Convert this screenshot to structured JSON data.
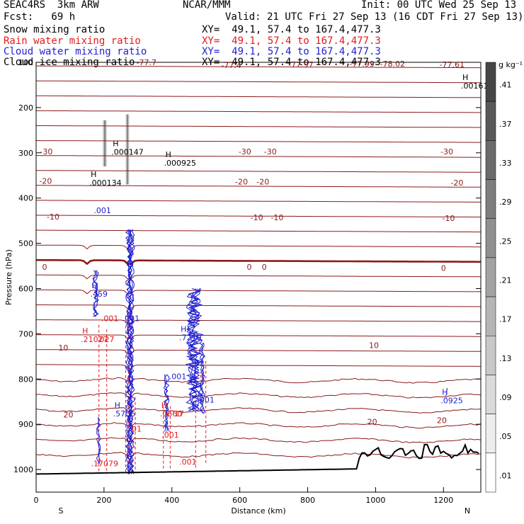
{
  "header": {
    "model": "SEAC4RS  3km ARW",
    "org": "NCAR/MMM",
    "init": "Init: 00 UTC Wed 25 Sep 13",
    "fcst": "Fcst:   69 h",
    "valid": "Valid: 21 UTC Fri 27 Sep 13 (16 CDT Fri 27 Sep 13)"
  },
  "fields": [
    {
      "label": "Snow mixing ratio",
      "xy": "XY=  49.1, 57.4 to 167.4,477.3",
      "color": "#000000"
    },
    {
      "label": "Rain water mixing ratio",
      "xy": "XY=  49.1, 57.4 to 167.4,477.3",
      "color": "#e41a1c"
    },
    {
      "label": "Cloud water mixing ratio",
      "xy": "XY=  49.1, 57.4 to 167.4,477.3",
      "color": "#1f1fd0"
    },
    {
      "label": "Cloud ice mixing ratio",
      "xy": "XY=  49.1, 57.4 to 167.4,477.3",
      "color": "#000000"
    }
  ],
  "chart_data": {
    "type": "line",
    "title": "",
    "xlabel": "Distance (km)",
    "ylabel": "Pressure (hPa)",
    "xlim": [
      0,
      1310
    ],
    "ylim": [
      1050,
      100
    ],
    "x_ticks": [
      "0",
      "200",
      "400",
      "600",
      "800",
      "1000",
      "1200"
    ],
    "x_tick_values": [
      0,
      200,
      400,
      600,
      800,
      1000,
      1200
    ],
    "y_ticks": [
      "100",
      "200",
      "300",
      "400",
      "500",
      "600",
      "700",
      "800",
      "900",
      "1000"
    ],
    "y_tick_values": [
      100,
      200,
      300,
      400,
      500,
      600,
      700,
      800,
      900,
      1000
    ],
    "endpoints": {
      "left": "S",
      "right": "N"
    },
    "temperature_label_color": "#8b1a1a",
    "temperature_labels": [
      {
        "text": "-30",
        "x": 30,
        "p": 297
      },
      {
        "text": "-30",
        "x": 615,
        "p": 297
      },
      {
        "text": "-30",
        "x": 1210,
        "p": 297
      },
      {
        "text": "-30",
        "x": 690,
        "p": 297
      },
      {
        "text": "-20",
        "x": 28,
        "p": 362
      },
      {
        "text": "-20",
        "x": 605,
        "p": 364
      },
      {
        "text": "-20",
        "x": 668,
        "p": 364
      },
      {
        "text": "-20",
        "x": 1240,
        "p": 366
      },
      {
        "text": "-10",
        "x": 50,
        "p": 441
      },
      {
        "text": "-10",
        "x": 650,
        "p": 443
      },
      {
        "text": "-10",
        "x": 710,
        "p": 443
      },
      {
        "text": "-10",
        "x": 1215,
        "p": 444
      },
      {
        "text": "0",
        "x": 25,
        "p": 552
      },
      {
        "text": "0",
        "x": 628,
        "p": 552
      },
      {
        "text": "0",
        "x": 672,
        "p": 552
      },
      {
        "text": "0",
        "x": 1200,
        "p": 555
      },
      {
        "text": "10",
        "x": 80,
        "p": 731
      },
      {
        "text": "10",
        "x": 995,
        "p": 725
      },
      {
        "text": "20",
        "x": 95,
        "p": 879
      },
      {
        "text": "20",
        "x": 990,
        "p": 894
      },
      {
        "text": "20",
        "x": 1195,
        "p": 891
      }
    ],
    "top_labels": [
      {
        "text": "-77.7",
        "x": 325,
        "p": 100
      },
      {
        "text": "-77.4",
        "x": 575,
        "p": 106
      },
      {
        "text": "-77.97",
        "x": 780,
        "p": 105
      },
      {
        "text": "-77.99",
        "x": 960,
        "p": 103
      },
      {
        "text": "-78.02",
        "x": 1050,
        "p": 103
      },
      {
        "text": "-77.61",
        "x": 1225,
        "p": 105
      }
    ],
    "maxima": [
      {
        "h": "H",
        "value": ".000147",
        "x": 230,
        "p": 298,
        "color": "#000000"
      },
      {
        "h": "H",
        "value": ".000925",
        "x": 385,
        "p": 322,
        "color": "#000000"
      },
      {
        "h": "H",
        "value": ".000134",
        "x": 165,
        "p": 366,
        "color": "#000000"
      },
      {
        "h": "H",
        "value": ".00161",
        "x": 1260,
        "p": 152,
        "color": "#000000"
      },
      {
        "h": "",
        "value": ".001",
        "x": 178,
        "p": 427,
        "color": "#1f1fd0"
      },
      {
        "h": "H",
        "value": ".459",
        "x": 168,
        "p": 612,
        "color": "#1f1fd0"
      },
      {
        "h": "",
        "value": ".001",
        "x": 200,
        "p": 666,
        "color": "#e41a1c"
      },
      {
        "h": "",
        "value": ".001",
        "x": 262,
        "p": 666,
        "color": "#1f1fd0"
      },
      {
        "h": "H",
        "value": ".21027",
        "x": 140,
        "p": 712,
        "color": "#e41a1c"
      },
      {
        "h": "",
        "value": "027",
        "x": 195,
        "p": 712,
        "color": "#e41a1c"
      },
      {
        "h": "H",
        "value": ".7219",
        "x": 430,
        "p": 708,
        "color": "#1f1fd0"
      },
      {
        "h": "",
        "value": ".001",
        "x": 400,
        "p": 794,
        "color": "#1f1fd0"
      },
      {
        "h": "",
        "value": "5",
        "x": 490,
        "p": 797,
        "color": "#e41a1c"
      },
      {
        "h": "",
        "value": "001",
        "x": 490,
        "p": 846,
        "color": "#1f1fd0"
      },
      {
        "h": "H",
        "value": ".5756",
        "x": 235,
        "p": 876,
        "color": "#1f1fd0"
      },
      {
        "h": "H",
        "value": ".0660",
        "x": 373,
        "p": 876,
        "color": "#e41a1c"
      },
      {
        "h": "",
        "value": "17",
        "x": 415,
        "p": 876,
        "color": "#e41a1c"
      },
      {
        "h": "",
        "value": "01",
        "x": 290,
        "p": 910,
        "color": "#e41a1c"
      },
      {
        "h": "",
        "value": ".001",
        "x": 378,
        "p": 923,
        "color": "#e41a1c"
      },
      {
        "h": "",
        "value": ".17079",
        "x": 170,
        "p": 987,
        "color": "#e41a1c"
      },
      {
        "h": "",
        "value": ".001",
        "x": 430,
        "p": 983,
        "color": "#e41a1c"
      },
      {
        "h": "H",
        "value": ".0925",
        "x": 1200,
        "p": 847,
        "color": "#1f1fd0"
      }
    ]
  },
  "colorbar": {
    "unit": "g kg⁻¹",
    "labels": [
      ".41",
      ".37",
      ".33",
      ".29",
      ".25",
      ".21",
      ".17",
      ".13",
      ".09",
      ".05",
      ".01"
    ]
  }
}
